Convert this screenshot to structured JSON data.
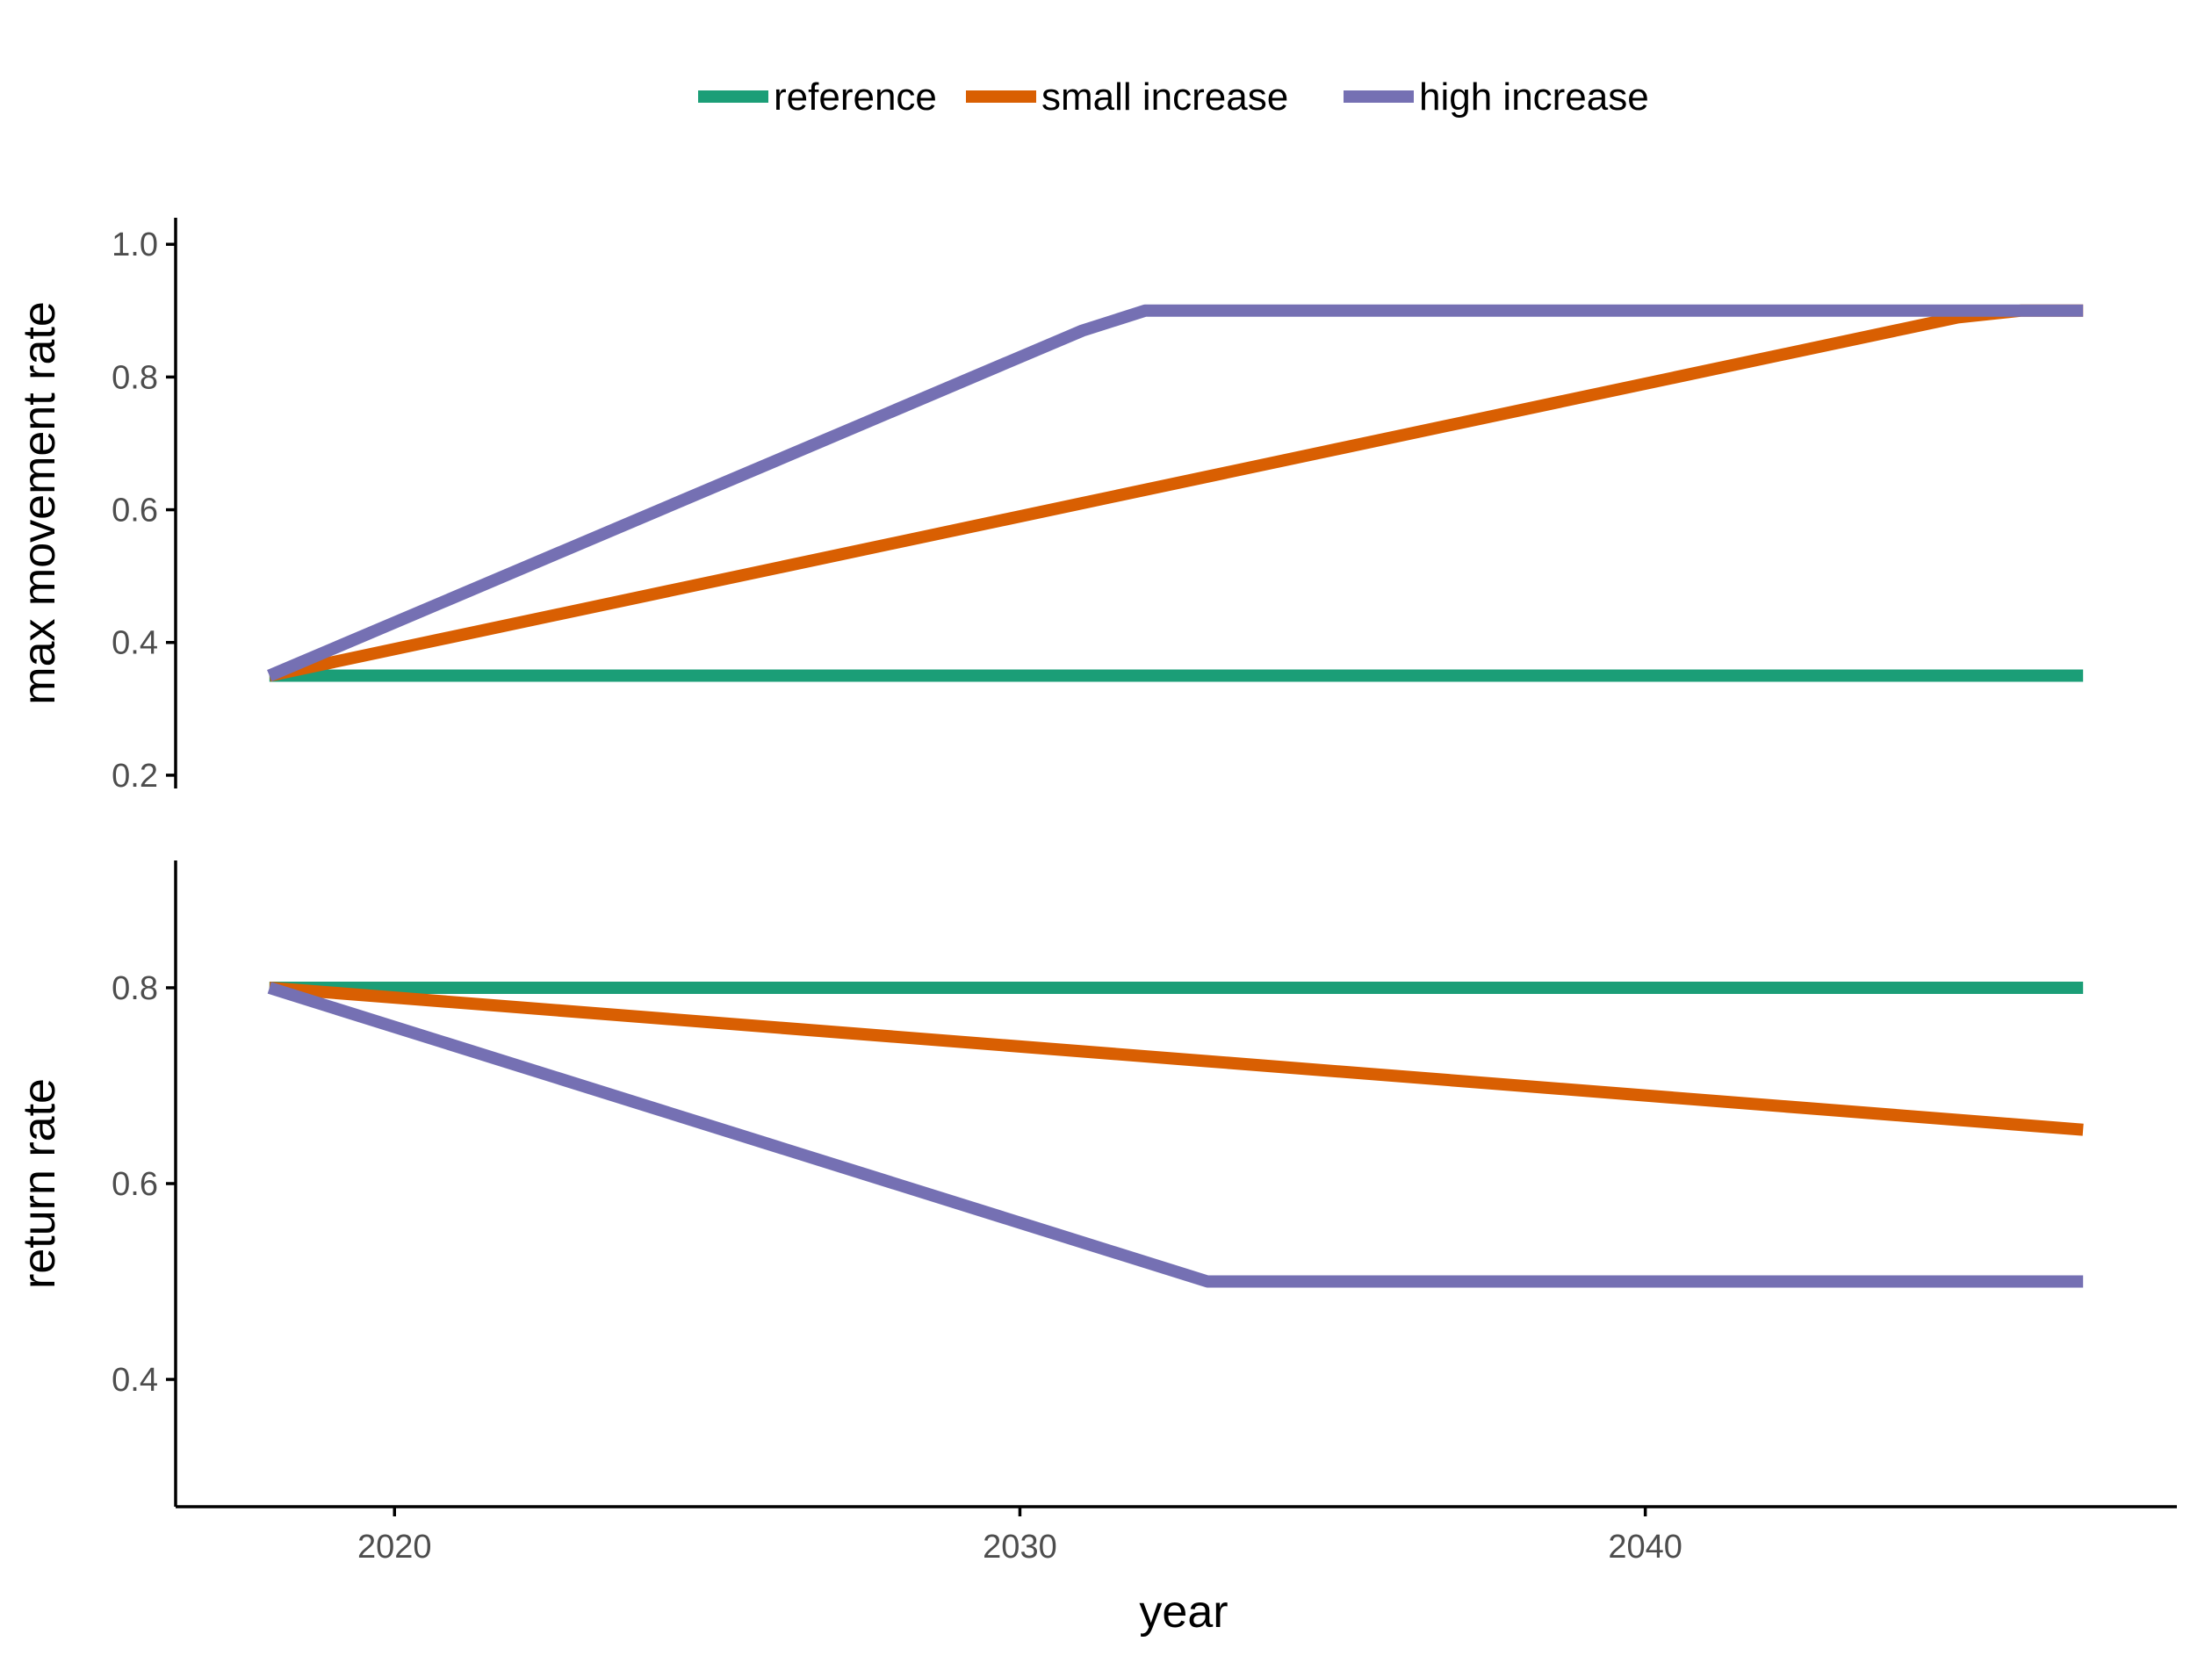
{
  "chart_data": {
    "type": "line",
    "layout": "two stacked panels sharing x-axis",
    "legend": {
      "placement": "top-center",
      "entries": [
        "reference",
        "small increase",
        "high increase"
      ]
    },
    "xlabel": "year",
    "x_ticks": [
      2020,
      2030,
      2040
    ],
    "xlim": [
      2016.5,
      2048.5
    ],
    "colors": {
      "reference": "#1b9e77",
      "small increase": "#d95f02",
      "high increase": "#7570b3"
    },
    "panels": [
      {
        "ylabel": "max movement rate",
        "ylim": [
          0.18,
          1.04
        ],
        "y_ticks": [
          0.2,
          0.4,
          0.6,
          0.8,
          1.0
        ],
        "y_tick_labels": [
          "0.2",
          "0.4",
          "0.6",
          "0.8",
          "1.0"
        ],
        "series": [
          {
            "name": "reference",
            "x": [
              2018,
              2047
            ],
            "values": [
              0.35,
              0.35
            ]
          },
          {
            "name": "small increase",
            "x": [
              2018,
              2031,
              2045,
              2046,
              2047
            ],
            "values": [
              0.35,
              0.61,
              0.89,
              0.9,
              0.9
            ]
          },
          {
            "name": "high increase",
            "x": [
              2018,
              2031,
              2032,
              2047
            ],
            "values": [
              0.35,
              0.87,
              0.9,
              0.9
            ]
          }
        ]
      },
      {
        "ylabel": "return rate",
        "ylim": [
          0.27,
          0.93
        ],
        "y_ticks": [
          0.4,
          0.6,
          0.8
        ],
        "y_tick_labels": [
          "0.4",
          "0.6",
          "0.8"
        ],
        "series": [
          {
            "name": "reference",
            "x": [
              2018,
              2047
            ],
            "values": [
              0.8,
              0.8
            ]
          },
          {
            "name": "small increase",
            "x": [
              2018,
              2033,
              2047
            ],
            "values": [
              0.8,
              0.725,
              0.655
            ]
          },
          {
            "name": "high increase",
            "x": [
              2018,
              2033,
              2047
            ],
            "values": [
              0.8,
              0.5,
              0.5
            ]
          }
        ]
      }
    ]
  }
}
